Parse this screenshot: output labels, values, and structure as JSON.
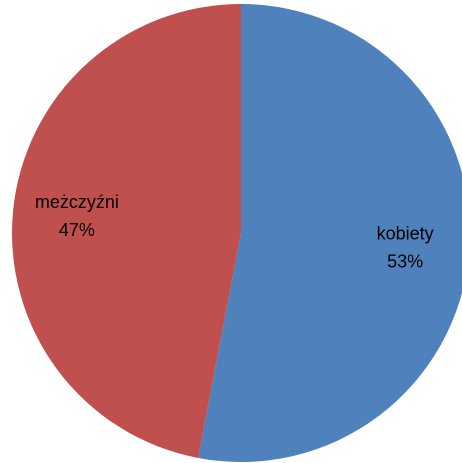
{
  "chart_data": {
    "type": "pie",
    "categories": [
      "kobiety",
      "meżczyźni"
    ],
    "values": [
      53,
      47
    ],
    "value_labels": [
      "53%",
      "47%"
    ],
    "colors": [
      "#4f81bd",
      "#c0504d"
    ]
  }
}
